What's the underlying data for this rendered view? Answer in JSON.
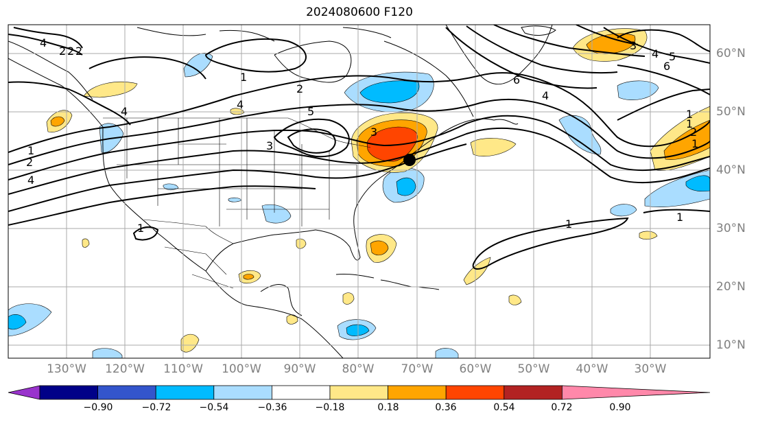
{
  "title": "2024080600 F120",
  "lon_labels": [
    "130°W",
    "120°W",
    "110°W",
    "100°W",
    "90°W",
    "80°W",
    "70°W",
    "60°W",
    "50°W",
    "40°W",
    "30°W"
  ],
  "lat_labels": [
    "60°N",
    "50°N",
    "40°N",
    "30°N",
    "20°N",
    "10°N"
  ],
  "colorbar": {
    "colors": [
      "#9933cc",
      "#000088",
      "#3355cc",
      "#00bbff",
      "#aaddff",
      "#ffffff",
      "#ffe888",
      "#ffa500",
      "#ff4500",
      "#b22222",
      "#ff88aa"
    ],
    "ticks": [
      "−0.90",
      "−0.72",
      "−0.54",
      "−0.36",
      "−0.18",
      "0.18",
      "0.36",
      "0.54",
      "0.72",
      "0.90"
    ]
  },
  "contour_labels": [
    "4",
    "2",
    "2",
    "2",
    "1",
    "2",
    "4",
    "1",
    "1",
    "4",
    "2",
    "5",
    "3",
    "3",
    "4",
    "6",
    "4",
    "5",
    "6",
    "3",
    "4",
    "2",
    "1",
    "1",
    "1",
    "1",
    "1"
  ],
  "marker": "storm-center"
}
